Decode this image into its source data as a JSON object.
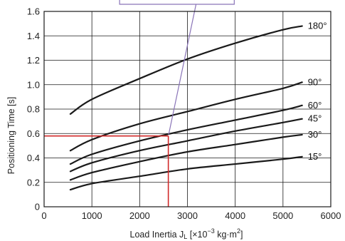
{
  "chart_data": {
    "type": "line",
    "xlabel": "Load Inertia J",
    "xlabel_sub": "L",
    "xlabel_unit_prefix": " [×10",
    "xlabel_exp": "−3",
    "xlabel_unit_mid": " kg·m",
    "xlabel_exp2": "2",
    "xlabel_unit_suffix": "]",
    "ylabel": "Positioning Time [s]",
    "xlim": [
      0,
      6000
    ],
    "ylim": [
      0,
      1.6
    ],
    "x_ticks": [
      "0",
      "1000",
      "2000",
      "3000",
      "4000",
      "5000",
      "6000"
    ],
    "y_ticks": [
      "0",
      "0.2",
      "0.4",
      "0.6",
      "0.8",
      "1.0",
      "1.2",
      "1.4",
      "1.6"
    ],
    "grid": true,
    "series": [
      {
        "name": "180°",
        "x": [
          550,
          1000,
          2000,
          3000,
          4000,
          5000,
          5400
        ],
        "y": [
          0.76,
          0.88,
          1.05,
          1.21,
          1.34,
          1.45,
          1.48
        ]
      },
      {
        "name": "90°",
        "x": [
          550,
          1000,
          2000,
          3000,
          4000,
          5000,
          5400
        ],
        "y": [
          0.46,
          0.55,
          0.68,
          0.78,
          0.88,
          0.97,
          1.02
        ]
      },
      {
        "name": "60°",
        "x": [
          550,
          1000,
          2000,
          3000,
          4000,
          5000,
          5400
        ],
        "y": [
          0.35,
          0.43,
          0.54,
          0.63,
          0.71,
          0.79,
          0.83
        ]
      },
      {
        "name": "45°",
        "x": [
          550,
          1000,
          2000,
          3000,
          4000,
          5000,
          5400
        ],
        "y": [
          0.29,
          0.36,
          0.46,
          0.54,
          0.62,
          0.69,
          0.72
        ]
      },
      {
        "name": "30°",
        "x": [
          550,
          1000,
          2000,
          3000,
          4000,
          5000,
          5400
        ],
        "y": [
          0.22,
          0.28,
          0.37,
          0.45,
          0.51,
          0.57,
          0.59
        ]
      },
      {
        "name": "15°",
        "x": [
          550,
          1000,
          2000,
          3000,
          4000,
          5000,
          5400
        ],
        "y": [
          0.14,
          0.19,
          0.25,
          0.31,
          0.35,
          0.39,
          0.41
        ]
      }
    ],
    "annotation": {
      "x": 2600,
      "y": 0.58,
      "color": "#d12a2a"
    },
    "callout_color": "#8a74b8",
    "colors": {
      "line": "#1a1a1a",
      "grid": "#1a1a1a"
    }
  }
}
